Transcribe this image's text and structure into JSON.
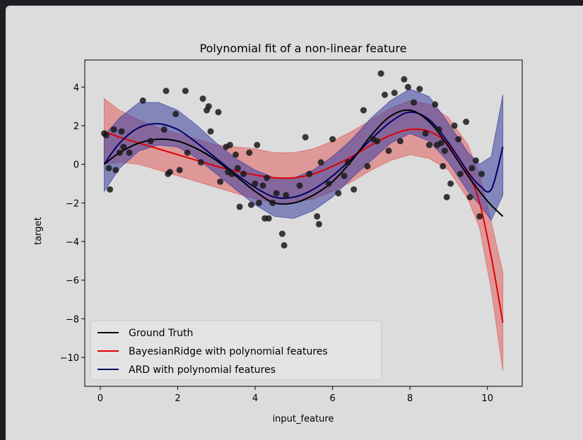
{
  "colors": {
    "page_bg": "#1e1f22",
    "figure_bg": "#dcdcdc",
    "ground_truth": "#000000",
    "bayesian": "#e00000",
    "bayesian_band": "#e06060",
    "ard": "#000066",
    "ard_band": "#3a3fa0",
    "points": "#1a1a1a"
  },
  "chart_data": {
    "type": "line",
    "title": "Polynomial fit of a non-linear feature",
    "xlabel": "input_feature",
    "ylabel": "target",
    "xlim": [
      -0.4,
      10.9
    ],
    "ylim": [
      -11.5,
      5.4
    ],
    "xticks": [
      0,
      2,
      4,
      6,
      8,
      10
    ],
    "yticks": [
      4,
      2,
      0,
      -2,
      -4,
      -6,
      -8,
      -10
    ],
    "xtick_labels": [
      "0",
      "2",
      "4",
      "6",
      "8",
      "10"
    ],
    "ytick_labels": [
      "4",
      "2",
      "0",
      "−2",
      "−4",
      "−6",
      "−8",
      "−10"
    ],
    "legend_position": "lower-left",
    "series": [
      {
        "name": "Ground Truth",
        "x": [
          0.1,
          0.5,
          1.0,
          1.5,
          2.0,
          2.5,
          3.0,
          3.5,
          4.0,
          4.5,
          5.0,
          5.5,
          6.0,
          6.5,
          7.0,
          7.5,
          8.0,
          8.5,
          9.0,
          9.5,
          10.0,
          10.4
        ],
        "y": [
          0.0,
          0.6,
          1.1,
          1.3,
          1.2,
          0.8,
          0.2,
          -0.6,
          -1.4,
          -2.0,
          -2.0,
          -1.6,
          -0.9,
          0.2,
          1.5,
          2.5,
          2.8,
          2.2,
          0.9,
          -0.6,
          -1.9,
          -2.7
        ]
      },
      {
        "name": "BayesianRidge with polynomial features",
        "x": [
          0.1,
          0.5,
          1.0,
          1.5,
          2.0,
          2.5,
          3.0,
          3.5,
          4.0,
          4.5,
          5.0,
          5.5,
          6.0,
          6.5,
          7.0,
          7.5,
          8.0,
          8.5,
          9.0,
          9.5,
          9.8,
          10.1,
          10.4
        ],
        "y": [
          1.7,
          1.4,
          1.1,
          0.8,
          0.5,
          0.2,
          -0.1,
          -0.35,
          -0.55,
          -0.7,
          -0.7,
          -0.5,
          -0.1,
          0.4,
          1.0,
          1.5,
          1.8,
          1.7,
          1.0,
          -0.5,
          -2.0,
          -4.8,
          -8.2
        ],
        "y_lower": [
          0.0,
          0.1,
          0.0,
          -0.3,
          -0.6,
          -0.9,
          -1.2,
          -1.5,
          -1.8,
          -2.0,
          -2.0,
          -1.8,
          -1.4,
          -0.9,
          -0.3,
          0.2,
          0.5,
          0.3,
          -0.3,
          -1.8,
          -3.3,
          -6.5,
          -10.7
        ],
        "y_upper": [
          3.4,
          2.8,
          2.3,
          1.9,
          1.6,
          1.3,
          1.0,
          0.9,
          0.8,
          0.6,
          0.6,
          0.8,
          1.2,
          1.7,
          2.3,
          2.9,
          3.3,
          3.1,
          2.4,
          1.0,
          -0.5,
          -3.0,
          -5.6
        ]
      },
      {
        "name": "ARD with polynomial features",
        "x": [
          0.1,
          0.5,
          1.0,
          1.5,
          2.0,
          2.5,
          3.0,
          3.5,
          4.0,
          4.5,
          5.0,
          5.5,
          6.0,
          6.5,
          7.0,
          7.5,
          8.0,
          8.5,
          9.0,
          9.5,
          9.8,
          10.1,
          10.4
        ],
        "y": [
          0.0,
          1.1,
          1.9,
          2.1,
          1.8,
          1.1,
          0.3,
          -0.5,
          -1.2,
          -1.7,
          -1.7,
          -1.3,
          -0.6,
          0.3,
          1.3,
          2.2,
          2.7,
          2.3,
          1.1,
          -0.4,
          -1.1,
          -1.3,
          0.9
        ],
        "y_lower": [
          -1.4,
          -0.2,
          0.7,
          1.0,
          0.9,
          0.3,
          -0.5,
          -1.3,
          -2.1,
          -2.7,
          -2.8,
          -2.4,
          -1.7,
          -0.7,
          0.2,
          1.1,
          1.6,
          1.2,
          0.1,
          -1.4,
          -2.1,
          -2.9,
          -1.6
        ],
        "y_upper": [
          1.5,
          2.4,
          3.2,
          3.2,
          2.8,
          2.0,
          1.1,
          0.3,
          -0.3,
          -0.7,
          -0.7,
          -0.3,
          0.4,
          1.3,
          2.4,
          3.3,
          3.9,
          3.5,
          2.1,
          0.6,
          0.0,
          0.4,
          3.6
        ]
      }
    ],
    "scatter": {
      "x": [
        0.1,
        0.15,
        0.22,
        0.25,
        0.35,
        0.4,
        0.5,
        0.55,
        0.6,
        0.75,
        1.1,
        1.3,
        1.65,
        1.7,
        1.75,
        1.8,
        1.95,
        2.05,
        2.2,
        2.25,
        2.6,
        2.65,
        2.75,
        2.8,
        2.85,
        3.05,
        3.1,
        3.25,
        3.3,
        3.35,
        3.4,
        3.5,
        3.55,
        3.6,
        3.7,
        3.85,
        3.9,
        4.0,
        4.05,
        4.1,
        4.2,
        4.25,
        4.3,
        4.35,
        4.45,
        4.55,
        4.7,
        4.75,
        4.8,
        5.15,
        5.3,
        5.4,
        5.6,
        5.65,
        5.7,
        5.9,
        6.0,
        6.15,
        6.3,
        6.4,
        6.55,
        6.8,
        6.9,
        7.05,
        7.15,
        7.25,
        7.35,
        7.45,
        7.6,
        7.75,
        7.85,
        7.95,
        8.1,
        8.25,
        8.4,
        8.5,
        8.65,
        8.7,
        8.75,
        8.8,
        8.85,
        8.9,
        8.95,
        9.05,
        9.15,
        9.25,
        9.3,
        9.45,
        9.55,
        9.6,
        9.7,
        9.8,
        9.85
      ],
      "y": [
        1.6,
        1.5,
        -0.2,
        -1.3,
        1.8,
        -0.3,
        0.6,
        1.7,
        0.9,
        0.6,
        3.3,
        1.2,
        1.8,
        3.8,
        -0.5,
        -0.4,
        2.6,
        -0.3,
        3.8,
        0.6,
        0.1,
        3.4,
        2.8,
        3.0,
        1.7,
        2.7,
        -0.9,
        0.9,
        -0.4,
        1.0,
        -0.5,
        0.5,
        -0.2,
        -2.2,
        -0.5,
        0.6,
        -2.1,
        -1.0,
        1.0,
        -2.0,
        -1.1,
        -2.8,
        -0.7,
        -2.8,
        -2.0,
        -1.5,
        -3.6,
        -4.2,
        -1.6,
        -1.1,
        1.4,
        -0.5,
        -2.7,
        -3.1,
        0.1,
        -1.0,
        1.3,
        -1.5,
        -0.6,
        0.1,
        -1.3,
        2.8,
        -0.1,
        1.3,
        1.2,
        4.7,
        3.6,
        0.7,
        3.7,
        1.2,
        4.4,
        4.0,
        3.2,
        3.9,
        1.6,
        1.0,
        3.1,
        1.0,
        1.8,
        1.1,
        -0.1,
        0.7,
        -1.7,
        -1.0,
        2.0,
        1.3,
        -0.5,
        2.2,
        -1.7,
        -0.2,
        0.2,
        -2.7,
        -0.5
      ]
    }
  }
}
